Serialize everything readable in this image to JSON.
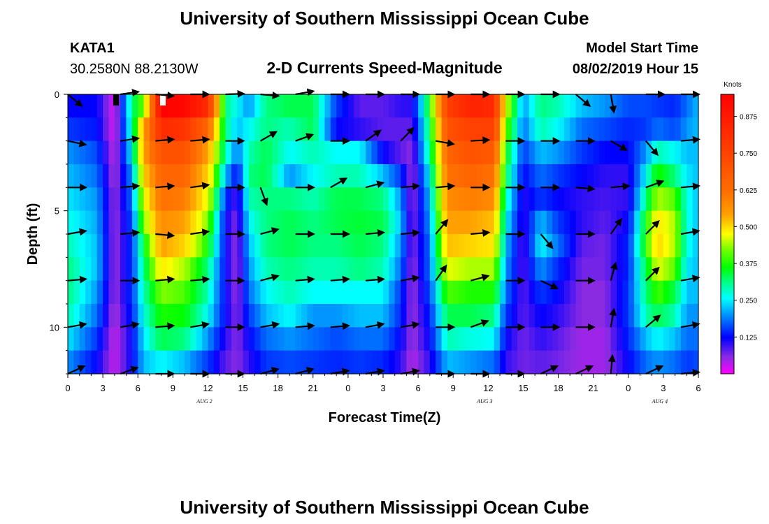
{
  "header": {
    "title": "University of Southern Mississippi Ocean Cube",
    "station": "KATA1",
    "coords": "30.2580N 88.2130W",
    "subtitle": "2-D Currents Speed-Magnitude",
    "model_label": "Model Start Time",
    "model_time": "08/02/2019 Hour 15"
  },
  "footer": {
    "title": "University of Southern Mississippi Ocean Cube"
  },
  "colors": {
    "ramp": [
      "#ff00ff",
      "#8a2be2",
      "#0000ff",
      "#0080ff",
      "#00ffff",
      "#00ff80",
      "#00ff00",
      "#80ff00",
      "#ffff00",
      "#ff8000",
      "#ff4000",
      "#ff0000"
    ]
  },
  "chart_data": {
    "type": "heatmap",
    "xlabel": "Forecast Time(Z)",
    "ylabel": "Depth (ft)",
    "x_range_hours": [
      0,
      54
    ],
    "y_range_ft": [
      0,
      12
    ],
    "x_tick_labels": [
      "0",
      "3",
      "6",
      "9",
      "12",
      "15",
      "18",
      "21",
      "0",
      "3",
      "6",
      "9",
      "12",
      "15",
      "18",
      "21",
      "0",
      "3",
      "6"
    ],
    "y_ticks": [
      0,
      5,
      10
    ],
    "y_tick_labels": [
      "0",
      "5",
      "10"
    ],
    "date_labels": [
      {
        "text": "AUG 2",
        "hour": 11.7
      },
      {
        "text": "AUG 3",
        "hour": 35.7
      },
      {
        "text": "AUG 4",
        "hour": 50.7
      }
    ],
    "colorbar": {
      "title": "Knots",
      "range": [
        0,
        0.95
      ],
      "ticks": [
        0.125,
        0.25,
        0.375,
        0.5,
        0.625,
        0.75,
        0.875
      ],
      "tick_labels": [
        "0.125",
        "0.250",
        "0.375",
        "0.500",
        "0.625",
        "0.750",
        "0.875"
      ]
    },
    "depths_ft": [
      0.5,
      1.5,
      2.5,
      3.5,
      4.5,
      5.5,
      6.5,
      7.5,
      8.5,
      9.5,
      10.5,
      11.5
    ],
    "speed_profiles": [
      {
        "t": 0,
        "v": [
          0.12,
          0.15,
          0.2,
          0.22,
          0.24,
          0.26,
          0.28,
          0.3,
          0.3,
          0.28,
          0.24,
          0.2
        ]
      },
      {
        "t": 2.5,
        "v": [
          0.12,
          0.13,
          0.16,
          0.18,
          0.2,
          0.21,
          0.22,
          0.22,
          0.2,
          0.18,
          0.15,
          0.12
        ]
      },
      {
        "t": 4,
        "v": [
          0.02,
          0.02,
          0.03,
          0.04,
          0.05,
          0.05,
          0.05,
          0.05,
          0.05,
          0.04,
          0.03,
          0.03
        ]
      },
      {
        "t": 5.5,
        "v": [
          0.3,
          0.28,
          0.25,
          0.2,
          0.18,
          0.16,
          0.15,
          0.15,
          0.15,
          0.14,
          0.12,
          0.12
        ]
      },
      {
        "t": 6.5,
        "v": [
          0.4,
          0.55,
          0.55,
          0.5,
          0.45,
          0.4,
          0.33,
          0.3,
          0.28,
          0.26,
          0.24,
          0.22
        ]
      },
      {
        "t": 8,
        "v": [
          0.9,
          0.8,
          0.7,
          0.65,
          0.62,
          0.58,
          0.55,
          0.48,
          0.4,
          0.36,
          0.32,
          0.25
        ]
      },
      {
        "t": 10,
        "v": [
          0.88,
          0.78,
          0.7,
          0.65,
          0.6,
          0.55,
          0.5,
          0.42,
          0.38,
          0.35,
          0.3,
          0.22
        ]
      },
      {
        "t": 12,
        "v": [
          0.8,
          0.65,
          0.55,
          0.5,
          0.45,
          0.4,
          0.35,
          0.3,
          0.28,
          0.25,
          0.2,
          0.15
        ]
      },
      {
        "t": 13.5,
        "v": [
          0.3,
          0.3,
          0.28,
          0.22,
          0.15,
          0.12,
          0.12,
          0.12,
          0.12,
          0.12,
          0.1,
          0.08
        ]
      },
      {
        "t": 14.5,
        "v": [
          0.25,
          0.22,
          0.18,
          0.12,
          0.08,
          0.06,
          0.05,
          0.05,
          0.05,
          0.06,
          0.06,
          0.06
        ]
      },
      {
        "t": 15.5,
        "v": [
          0.2,
          0.25,
          0.28,
          0.3,
          0.28,
          0.25,
          0.22,
          0.2,
          0.18,
          0.15,
          0.12,
          0.1
        ]
      },
      {
        "t": 17,
        "v": [
          0.3,
          0.3,
          0.32,
          0.32,
          0.3,
          0.3,
          0.3,
          0.28,
          0.25,
          0.22,
          0.18,
          0.15
        ]
      },
      {
        "t": 19,
        "v": [
          0.32,
          0.28,
          0.25,
          0.2,
          0.3,
          0.32,
          0.32,
          0.3,
          0.28,
          0.25,
          0.2,
          0.16
        ]
      },
      {
        "t": 21,
        "v": [
          0.32,
          0.32,
          0.28,
          0.25,
          0.28,
          0.3,
          0.3,
          0.28,
          0.25,
          0.2,
          0.18,
          0.15
        ]
      },
      {
        "t": 23,
        "v": [
          0.15,
          0.12,
          0.25,
          0.28,
          0.32,
          0.32,
          0.3,
          0.28,
          0.25,
          0.2,
          0.16,
          0.14
        ]
      },
      {
        "t": 25,
        "v": [
          0.08,
          0.1,
          0.25,
          0.28,
          0.32,
          0.33,
          0.32,
          0.3,
          0.25,
          0.22,
          0.18,
          0.15
        ]
      },
      {
        "t": 27,
        "v": [
          0.08,
          0.08,
          0.12,
          0.22,
          0.3,
          0.32,
          0.3,
          0.28,
          0.25,
          0.22,
          0.18,
          0.14
        ]
      },
      {
        "t": 28.5,
        "v": [
          0.1,
          0.08,
          0.08,
          0.15,
          0.2,
          0.22,
          0.2,
          0.18,
          0.15,
          0.14,
          0.12,
          0.1
        ]
      },
      {
        "t": 29.5,
        "v": [
          0.1,
          0.08,
          0.06,
          0.05,
          0.05,
          0.06,
          0.06,
          0.05,
          0.05,
          0.05,
          0.05,
          0.04
        ]
      },
      {
        "t": 31,
        "v": [
          0.35,
          0.32,
          0.3,
          0.25,
          0.22,
          0.2,
          0.18,
          0.18,
          0.16,
          0.14,
          0.12,
          0.1
        ]
      },
      {
        "t": 32.5,
        "v": [
          0.75,
          0.7,
          0.65,
          0.62,
          0.58,
          0.55,
          0.52,
          0.45,
          0.38,
          0.32,
          0.28,
          0.22
        ]
      },
      {
        "t": 34.5,
        "v": [
          0.82,
          0.75,
          0.7,
          0.65,
          0.6,
          0.55,
          0.5,
          0.42,
          0.36,
          0.32,
          0.26,
          0.2
        ]
      },
      {
        "t": 36.5,
        "v": [
          0.8,
          0.75,
          0.68,
          0.62,
          0.58,
          0.52,
          0.48,
          0.42,
          0.36,
          0.3,
          0.25,
          0.18
        ]
      },
      {
        "t": 37.5,
        "v": [
          0.45,
          0.4,
          0.35,
          0.32,
          0.28,
          0.25,
          0.22,
          0.2,
          0.18,
          0.15,
          0.12,
          0.1
        ]
      },
      {
        "t": 39,
        "v": [
          0.2,
          0.18,
          0.15,
          0.12,
          0.1,
          0.09,
          0.08,
          0.08,
          0.08,
          0.08,
          0.07,
          0.07
        ]
      },
      {
        "t": 40.5,
        "v": [
          0.3,
          0.28,
          0.22,
          0.18,
          0.15,
          0.22,
          0.25,
          0.2,
          0.15,
          0.12,
          0.1,
          0.08
        ]
      },
      {
        "t": 42,
        "v": [
          0.28,
          0.25,
          0.2,
          0.15,
          0.12,
          0.15,
          0.18,
          0.14,
          0.12,
          0.1,
          0.08,
          0.07
        ]
      },
      {
        "t": 44,
        "v": [
          0.22,
          0.18,
          0.15,
          0.12,
          0.1,
          0.1,
          0.08,
          0.07,
          0.06,
          0.06,
          0.05,
          0.05
        ]
      },
      {
        "t": 46,
        "v": [
          0.2,
          0.16,
          0.12,
          0.1,
          0.09,
          0.08,
          0.07,
          0.07,
          0.06,
          0.06,
          0.05,
          0.05
        ]
      },
      {
        "t": 48,
        "v": [
          0.16,
          0.14,
          0.12,
          0.1,
          0.1,
          0.12,
          0.14,
          0.14,
          0.15,
          0.15,
          0.14,
          0.12
        ]
      },
      {
        "t": 49.5,
        "v": [
          0.16,
          0.15,
          0.2,
          0.25,
          0.3,
          0.35,
          0.36,
          0.32,
          0.3,
          0.28,
          0.22,
          0.18
        ]
      },
      {
        "t": 50.5,
        "v": [
          0.15,
          0.18,
          0.28,
          0.36,
          0.42,
          0.48,
          0.5,
          0.45,
          0.38,
          0.32,
          0.25,
          0.2
        ]
      },
      {
        "t": 52,
        "v": [
          0.14,
          0.16,
          0.25,
          0.3,
          0.38,
          0.42,
          0.42,
          0.38,
          0.32,
          0.28,
          0.22,
          0.18
        ]
      },
      {
        "t": 53,
        "v": [
          0.18,
          0.2,
          0.22,
          0.24,
          0.26,
          0.26,
          0.26,
          0.24,
          0.22,
          0.2,
          0.18,
          0.15
        ]
      },
      {
        "t": 54,
        "v": [
          0.22,
          0.22,
          0.22,
          0.22,
          0.22,
          0.22,
          0.22,
          0.22,
          0.22,
          0.2,
          0.18,
          0.16
        ]
      }
    ],
    "vector_times": [
      0,
      4.5,
      7.5,
      10.5,
      13.5,
      16.5,
      19.5,
      22.5,
      25.5,
      28.5,
      31.5,
      34.5,
      37.5,
      40.5,
      43.5,
      46.5,
      49.5,
      52.5
    ],
    "vector_depths": [
      0,
      2,
      4,
      6,
      8,
      10,
      12
    ],
    "vector_angles_deg": [
      [
        -40,
        8,
        -5,
        0,
        2,
        -5,
        10,
        0,
        0,
        0,
        0,
        0,
        0,
        0,
        -40,
        -80,
        0,
        0
      ],
      [
        -12,
        8,
        5,
        5,
        0,
        30,
        20,
        0,
        35,
        45,
        -10,
        3,
        0,
        0,
        0,
        -30,
        -50,
        5
      ],
      [
        0,
        5,
        5,
        8,
        0,
        -70,
        0,
        30,
        15,
        5,
        5,
        0,
        0,
        0,
        -5,
        5,
        20,
        5
      ],
      [
        10,
        5,
        -5,
        8,
        0,
        15,
        0,
        0,
        5,
        5,
        50,
        5,
        0,
        -50,
        0,
        55,
        45,
        10
      ],
      [
        5,
        0,
        5,
        5,
        0,
        15,
        5,
        5,
        5,
        10,
        55,
        15,
        0,
        -25,
        0,
        75,
        45,
        10
      ],
      [
        10,
        10,
        5,
        10,
        0,
        10,
        5,
        5,
        10,
        10,
        0,
        20,
        0,
        0,
        0,
        80,
        40,
        10
      ],
      [
        25,
        20,
        0,
        0,
        0,
        15,
        15,
        10,
        10,
        10,
        0,
        0,
        0,
        25,
        25,
        85,
        25,
        5
      ]
    ]
  }
}
